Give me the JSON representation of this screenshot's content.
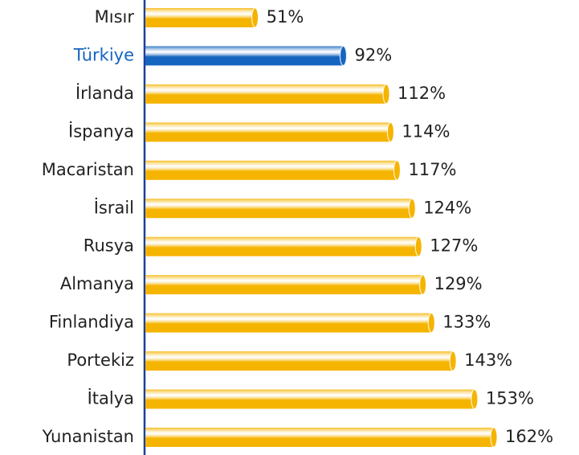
{
  "chart_data": {
    "type": "bar",
    "orientation": "horizontal",
    "categories": [
      "Mısır",
      "Türkiye",
      "İrlanda",
      "İspanya",
      "Macaristan",
      "İsrail",
      "Rusya",
      "Almanya",
      "Finlandiya",
      "Portekiz",
      "İtalya",
      "Yunanistan"
    ],
    "values": [
      51,
      92,
      112,
      114,
      117,
      124,
      127,
      129,
      133,
      143,
      153,
      162
    ],
    "value_labels": [
      "51%",
      "92%",
      "112%",
      "114%",
      "117%",
      "124%",
      "127%",
      "129%",
      "133%",
      "143%",
      "153%",
      "162%"
    ],
    "color": "#f5b400",
    "colors": [
      "#f5b400",
      "#1565c0",
      "#f5b400",
      "#f5b400",
      "#f5b400",
      "#f5b400",
      "#f5b400",
      "#f5b400",
      "#f5b400",
      "#f5b400",
      "#f5b400",
      "#f5b400"
    ]
  }
}
